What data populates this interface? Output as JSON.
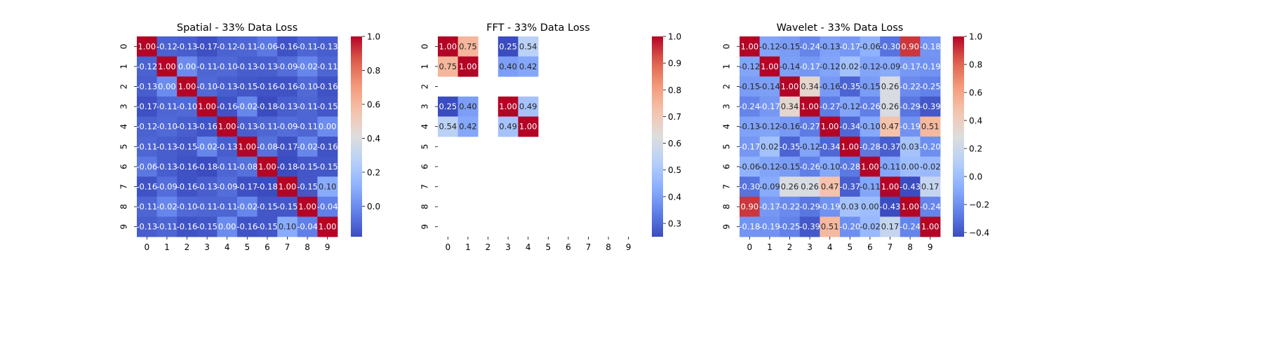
{
  "chart_data": [
    {
      "type": "heatmap",
      "title": "Spatial - 33% Data Loss",
      "xlabels": [
        "0",
        "1",
        "2",
        "3",
        "4",
        "5",
        "6",
        "7",
        "8",
        "9"
      ],
      "ylabels": [
        "0",
        "1",
        "2",
        "3",
        "4",
        "5",
        "6",
        "7",
        "8",
        "9"
      ],
      "colormap": "coolwarm",
      "vmin": -0.18,
      "vmax": 1.0,
      "colorbar_ticks": [
        {
          "v": 0.0,
          "label": "0.0"
        },
        {
          "v": 0.2,
          "label": "0.2"
        },
        {
          "v": 0.4,
          "label": "0.4"
        },
        {
          "v": 0.6,
          "label": "0.6"
        },
        {
          "v": 0.8,
          "label": "0.8"
        },
        {
          "v": 1.0,
          "label": "1.0"
        }
      ],
      "values": [
        [
          1.0,
          -0.12,
          -0.13,
          -0.17,
          -0.12,
          -0.11,
          -0.06,
          -0.16,
          -0.11,
          -0.13
        ],
        [
          -0.12,
          1.0,
          -0.0,
          -0.11,
          -0.1,
          -0.13,
          -0.13,
          -0.09,
          -0.02,
          -0.11
        ],
        [
          -0.13,
          -0.0,
          1.0,
          -0.1,
          -0.13,
          -0.15,
          -0.16,
          -0.16,
          -0.1,
          -0.16
        ],
        [
          -0.17,
          -0.11,
          -0.1,
          1.0,
          -0.16,
          -0.02,
          -0.18,
          -0.13,
          -0.11,
          -0.15
        ],
        [
          -0.12,
          -0.1,
          -0.13,
          -0.16,
          1.0,
          -0.13,
          -0.11,
          -0.09,
          -0.11,
          -0.0
        ],
        [
          -0.11,
          -0.13,
          -0.15,
          -0.02,
          -0.13,
          1.0,
          -0.08,
          -0.17,
          -0.02,
          -0.16
        ],
        [
          -0.06,
          -0.13,
          -0.16,
          -0.18,
          -0.11,
          -0.08,
          1.0,
          -0.18,
          -0.15,
          -0.15
        ],
        [
          -0.16,
          -0.09,
          -0.16,
          -0.13,
          -0.09,
          -0.17,
          -0.18,
          1.0,
          -0.15,
          0.1
        ],
        [
          -0.11,
          -0.02,
          -0.1,
          -0.11,
          -0.11,
          -0.02,
          -0.15,
          -0.15,
          1.0,
          -0.04
        ],
        [
          -0.13,
          -0.11,
          -0.16,
          -0.15,
          -0.0,
          -0.16,
          -0.15,
          0.1,
          -0.04,
          1.0
        ]
      ]
    },
    {
      "type": "heatmap",
      "title": "FFT - 33% Data Loss",
      "xlabels": [
        "0",
        "1",
        "2",
        "3",
        "4",
        "5",
        "6",
        "7",
        "8",
        "9"
      ],
      "ylabels": [
        "0",
        "1",
        "2",
        "3",
        "4",
        "5",
        "6",
        "7",
        "8",
        "9"
      ],
      "colormap": "coolwarm",
      "vmin": 0.25,
      "vmax": 1.0,
      "colorbar_ticks": [
        {
          "v": 0.3,
          "label": "0.3"
        },
        {
          "v": 0.4,
          "label": "0.4"
        },
        {
          "v": 0.5,
          "label": "0.5"
        },
        {
          "v": 0.6,
          "label": "0.6"
        },
        {
          "v": 0.7,
          "label": "0.7"
        },
        {
          "v": 0.8,
          "label": "0.8"
        },
        {
          "v": 0.9,
          "label": "0.9"
        },
        {
          "v": 1.0,
          "label": "1.0"
        }
      ],
      "values": [
        [
          1.0,
          0.75,
          null,
          0.25,
          0.54,
          null,
          null,
          null,
          null,
          null
        ],
        [
          0.75,
          1.0,
          null,
          0.4,
          0.42,
          null,
          null,
          null,
          null,
          null
        ],
        [
          null,
          null,
          null,
          null,
          null,
          null,
          null,
          null,
          null,
          null
        ],
        [
          0.25,
          0.4,
          null,
          1.0,
          0.49,
          null,
          null,
          null,
          null,
          null
        ],
        [
          0.54,
          0.42,
          null,
          0.49,
          1.0,
          null,
          null,
          null,
          null,
          null
        ],
        [
          null,
          null,
          null,
          null,
          null,
          null,
          null,
          null,
          null,
          null
        ],
        [
          null,
          null,
          null,
          null,
          null,
          null,
          null,
          null,
          null,
          null
        ],
        [
          null,
          null,
          null,
          null,
          null,
          null,
          null,
          null,
          null,
          null
        ],
        [
          null,
          null,
          null,
          null,
          null,
          null,
          null,
          null,
          null,
          null
        ],
        [
          null,
          null,
          null,
          null,
          null,
          null,
          null,
          null,
          null,
          null
        ]
      ]
    },
    {
      "type": "heatmap",
      "title": "Wavelet - 33% Data Loss",
      "xlabels": [
        "0",
        "1",
        "2",
        "3",
        "4",
        "5",
        "6",
        "7",
        "8",
        "9"
      ],
      "ylabels": [
        "0",
        "1",
        "2",
        "3",
        "4",
        "5",
        "6",
        "7",
        "8",
        "9"
      ],
      "colormap": "coolwarm",
      "vmin": -0.43,
      "vmax": 1.0,
      "colorbar_ticks": [
        {
          "v": -0.4,
          "label": "−0.4"
        },
        {
          "v": -0.2,
          "label": "−0.2"
        },
        {
          "v": 0.0,
          "label": "0.0"
        },
        {
          "v": 0.2,
          "label": "0.2"
        },
        {
          "v": 0.4,
          "label": "0.4"
        },
        {
          "v": 0.6,
          "label": "0.6"
        },
        {
          "v": 0.8,
          "label": "0.8"
        },
        {
          "v": 1.0,
          "label": "1.0"
        }
      ],
      "values": [
        [
          1.0,
          -0.12,
          -0.15,
          -0.24,
          -0.13,
          -0.17,
          -0.06,
          -0.3,
          0.9,
          -0.18
        ],
        [
          -0.12,
          1.0,
          -0.14,
          -0.17,
          -0.12,
          0.02,
          -0.12,
          -0.09,
          -0.17,
          -0.19
        ],
        [
          -0.15,
          -0.14,
          1.0,
          0.34,
          -0.16,
          -0.35,
          -0.15,
          0.26,
          -0.22,
          -0.25
        ],
        [
          -0.24,
          -0.17,
          0.34,
          1.0,
          -0.27,
          -0.12,
          -0.26,
          0.26,
          -0.29,
          -0.39
        ],
        [
          -0.13,
          -0.12,
          -0.16,
          -0.27,
          1.0,
          -0.34,
          -0.1,
          0.47,
          -0.19,
          0.51
        ],
        [
          -0.17,
          0.02,
          -0.35,
          -0.12,
          -0.34,
          1.0,
          -0.28,
          -0.37,
          0.03,
          -0.2
        ],
        [
          -0.06,
          -0.12,
          -0.15,
          -0.26,
          -0.1,
          -0.28,
          1.0,
          -0.11,
          -0.0,
          -0.02
        ],
        [
          -0.3,
          -0.09,
          0.26,
          0.26,
          0.47,
          -0.37,
          -0.11,
          1.0,
          -0.43,
          0.17
        ],
        [
          0.9,
          -0.17,
          -0.22,
          -0.29,
          -0.19,
          0.03,
          -0.0,
          -0.43,
          1.0,
          -0.24
        ],
        [
          -0.18,
          -0.19,
          -0.25,
          -0.39,
          0.51,
          -0.2,
          -0.02,
          0.17,
          -0.24,
          1.0
        ]
      ]
    }
  ]
}
